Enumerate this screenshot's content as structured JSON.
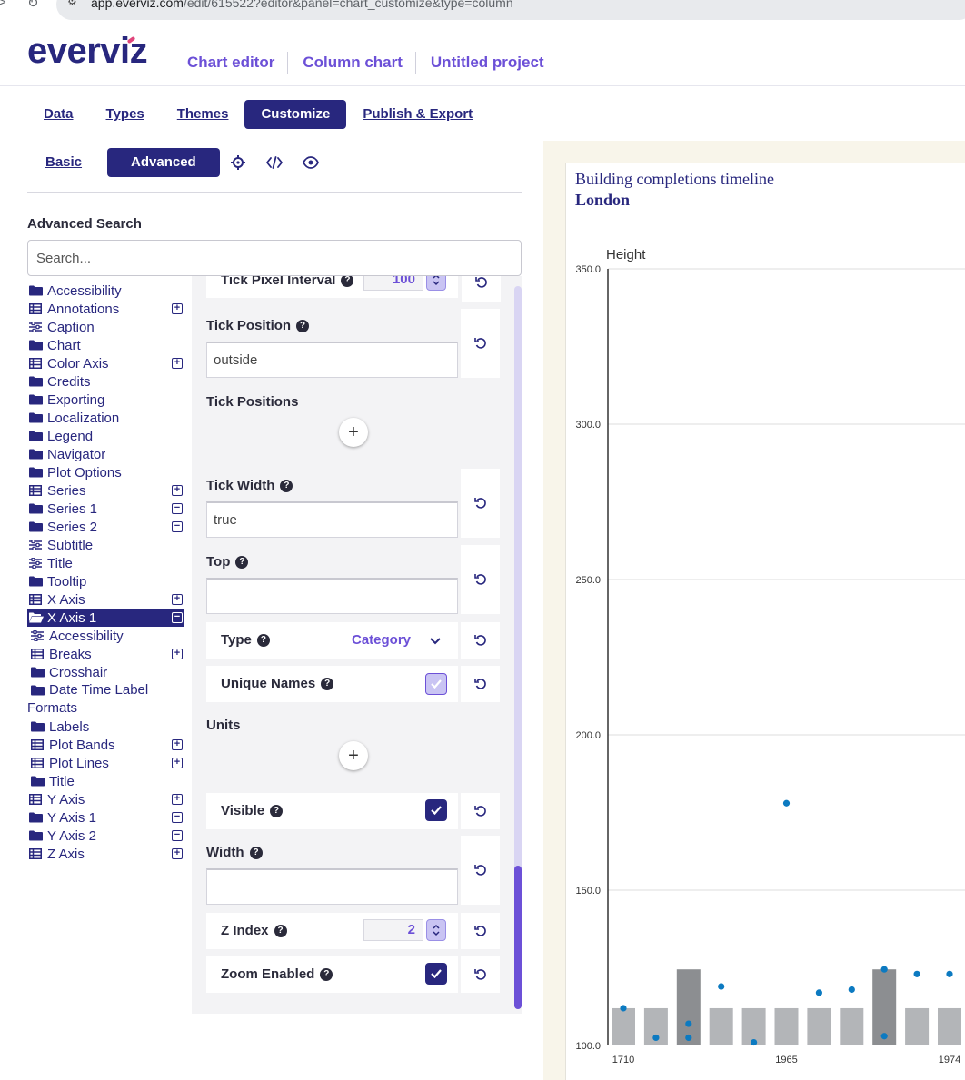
{
  "browser": {
    "url_host": "app.everviz.com",
    "url_path": "/edit/615522?editor&panel=chart_customize&type=column"
  },
  "header": {
    "logo": "everviz",
    "breadcrumbs": [
      "Chart editor",
      "Column chart",
      "Untitled project"
    ]
  },
  "tabs": [
    "Data",
    "Types",
    "Themes",
    "Customize",
    "Publish & Export"
  ],
  "active_tab": "Customize",
  "subtabs": {
    "basic": "Basic",
    "advanced": "Advanced"
  },
  "tool_icons": [
    "crosshair-icon",
    "code-icon",
    "eye-icon"
  ],
  "advanced_search": {
    "title": "Advanced Search",
    "placeholder": "Search..."
  },
  "tree": [
    {
      "label": "Accessibility",
      "icon": "folder-icon",
      "toggle": ""
    },
    {
      "label": "Annotations",
      "icon": "table-icon",
      "toggle": "+"
    },
    {
      "label": "Caption",
      "icon": "sliders-icon",
      "toggle": ""
    },
    {
      "label": "Chart",
      "icon": "folder-icon",
      "toggle": ""
    },
    {
      "label": "Color Axis",
      "icon": "table-icon",
      "toggle": "+"
    },
    {
      "label": "Credits",
      "icon": "folder-icon",
      "toggle": ""
    },
    {
      "label": "Exporting",
      "icon": "folder-icon",
      "toggle": ""
    },
    {
      "label": "Localization",
      "icon": "folder-icon",
      "toggle": ""
    },
    {
      "label": "Legend",
      "icon": "folder-icon",
      "toggle": ""
    },
    {
      "label": "Navigator",
      "icon": "folder-icon",
      "toggle": ""
    },
    {
      "label": "Plot Options",
      "icon": "folder-icon",
      "toggle": ""
    },
    {
      "label": "Series",
      "icon": "table-icon",
      "toggle": "+"
    },
    {
      "label": "Series 1",
      "icon": "folder-icon",
      "toggle": "−"
    },
    {
      "label": "Series 2",
      "icon": "folder-icon",
      "toggle": "−"
    },
    {
      "label": "Subtitle",
      "icon": "sliders-icon",
      "toggle": ""
    },
    {
      "label": "Title",
      "icon": "sliders-icon",
      "toggle": ""
    },
    {
      "label": "Tooltip",
      "icon": "folder-icon",
      "toggle": ""
    },
    {
      "label": "X Axis",
      "icon": "table-icon",
      "toggle": "+"
    },
    {
      "label": "X Axis 1",
      "icon": "open-folder-icon",
      "toggle": "−",
      "selected": true
    },
    {
      "label": "Accessibility",
      "icon": "sliders-icon",
      "toggle": "",
      "child": true
    },
    {
      "label": "Breaks",
      "icon": "table-icon",
      "toggle": "+",
      "child": true
    },
    {
      "label": "Crosshair",
      "icon": "folder-icon",
      "toggle": "",
      "child": true
    },
    {
      "label": "Date Time Label Formats",
      "icon": "folder-icon",
      "toggle": "",
      "child": true,
      "wrap": true
    },
    {
      "label": "Labels",
      "icon": "folder-icon",
      "toggle": "",
      "child": true
    },
    {
      "label": "Plot Bands",
      "icon": "table-icon",
      "toggle": "+",
      "child": true
    },
    {
      "label": "Plot Lines",
      "icon": "table-icon",
      "toggle": "+",
      "child": true
    },
    {
      "label": "Title",
      "icon": "folder-icon",
      "toggle": "",
      "child": true
    },
    {
      "label": "Y Axis",
      "icon": "table-icon",
      "toggle": "+"
    },
    {
      "label": "Y Axis 1",
      "icon": "folder-icon",
      "toggle": "−"
    },
    {
      "label": "Y Axis 2",
      "icon": "folder-icon",
      "toggle": "−"
    },
    {
      "label": "Z Axis",
      "icon": "table-icon",
      "toggle": "+"
    }
  ],
  "options": {
    "tick_pixel_interval": {
      "label": "Tick Pixel Interval",
      "value": "100"
    },
    "tick_position": {
      "label": "Tick Position",
      "value": "outside"
    },
    "tick_positions": {
      "label": "Tick Positions"
    },
    "tick_width": {
      "label": "Tick Width",
      "value": "true"
    },
    "top": {
      "label": "Top",
      "value": ""
    },
    "type": {
      "label": "Type",
      "value": "Category"
    },
    "unique_names": {
      "label": "Unique Names",
      "checked": true
    },
    "units": {
      "label": "Units"
    },
    "visible": {
      "label": "Visible",
      "checked": true
    },
    "width": {
      "label": "Width",
      "value": ""
    },
    "z_index": {
      "label": "Z Index",
      "value": "2"
    },
    "zoom_enabled": {
      "label": "Zoom Enabled",
      "checked": true
    }
  },
  "chart": {
    "title": "Building completions timeline",
    "subtitle": "London"
  },
  "chart_data": {
    "type": "bar",
    "title": "Building completions timeline",
    "subtitle": "London",
    "ylabel": "Height",
    "ylim": [
      100,
      350
    ],
    "yticks": [
      "100.0",
      "150.0",
      "200.0",
      "250.0",
      "300.0",
      "350.0"
    ],
    "x_tick_labels": [
      "1710",
      "1965",
      "1974"
    ],
    "x_tick_positions": [
      0,
      5,
      10
    ],
    "bars": {
      "values": [
        112,
        112,
        124.5,
        112,
        112,
        112,
        112,
        112,
        124.5,
        112,
        112
      ],
      "highlight": [
        false,
        false,
        true,
        false,
        false,
        false,
        false,
        false,
        true,
        false,
        false
      ]
    },
    "points": {
      "values": [
        [
          0,
          112
        ],
        [
          1,
          102.5
        ],
        [
          2,
          107
        ],
        [
          2,
          102.5
        ],
        [
          3,
          119
        ],
        [
          4,
          101
        ],
        [
          5,
          178
        ],
        [
          6,
          117
        ],
        [
          7,
          118
        ],
        [
          8,
          124.5
        ],
        [
          8,
          103
        ],
        [
          9,
          123
        ],
        [
          10,
          123
        ]
      ]
    },
    "colors": {
      "bar": "#b3b5b8",
      "bar_highlight": "#8c8e91",
      "point": "#0c7ac1",
      "grid": "#dcdcdc"
    }
  }
}
